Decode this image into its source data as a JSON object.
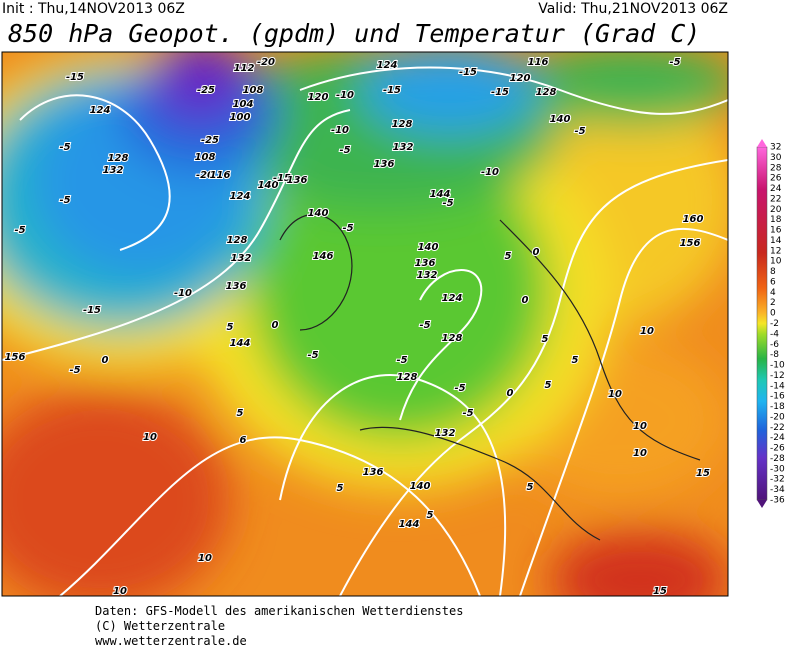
{
  "header": {
    "init": "Init : Thu,14NOV2013 06Z",
    "valid": "Valid: Thu,21NOV2013 06Z",
    "title": "850 hPa Geopot. (gpdm) und Temperatur (Grad C)"
  },
  "colorbar": {
    "labels": [
      "32",
      "30",
      "28",
      "26",
      "24",
      "22",
      "20",
      "18",
      "16",
      "14",
      "12",
      "10",
      "8",
      "6",
      "4",
      "2",
      "0",
      "-2",
      "-4",
      "-6",
      "-8",
      "-10",
      "-12",
      "-14",
      "-16",
      "-18",
      "-20",
      "-22",
      "-24",
      "-26",
      "-28",
      "-30",
      "-32",
      "-34",
      "-36"
    ]
  },
  "map_labels": [
    "-15",
    "124",
    "-5",
    "128",
    "132",
    "-25",
    "112",
    "-20",
    "108",
    "104",
    "100",
    "-25",
    "108",
    "-20",
    "116",
    "124",
    "128",
    "132",
    "136",
    "140",
    "-15",
    "136",
    "140",
    "120",
    "-10",
    "-15",
    "124",
    "-15",
    "-15",
    "120",
    "116",
    "128",
    "-5",
    "140",
    "-5",
    "128",
    "132",
    "136",
    "-10",
    "-5",
    "-10",
    "144",
    "-5",
    "-5",
    "146",
    "-5",
    "-5",
    "-10",
    "-15",
    "5",
    "144",
    "0",
    "0",
    "-5",
    "156",
    "5",
    "10",
    "6",
    "160",
    "156",
    "140",
    "136",
    "132",
    "124",
    "-5",
    "128",
    "-5",
    "-5",
    "128",
    "-5",
    "-5",
    "132",
    "136",
    "140",
    "5",
    "144",
    "5",
    "0",
    "5",
    "0",
    "5",
    "10",
    "5",
    "5",
    "0",
    "10",
    "10",
    "10",
    "15",
    "10",
    "10",
    "15",
    "5"
  ],
  "footer": [
    "Daten: GFS-Modell des amerikanischen Wetterdienstes",
    "(C) Wetterzentrale",
    "www.wetterzentrale.de"
  ]
}
